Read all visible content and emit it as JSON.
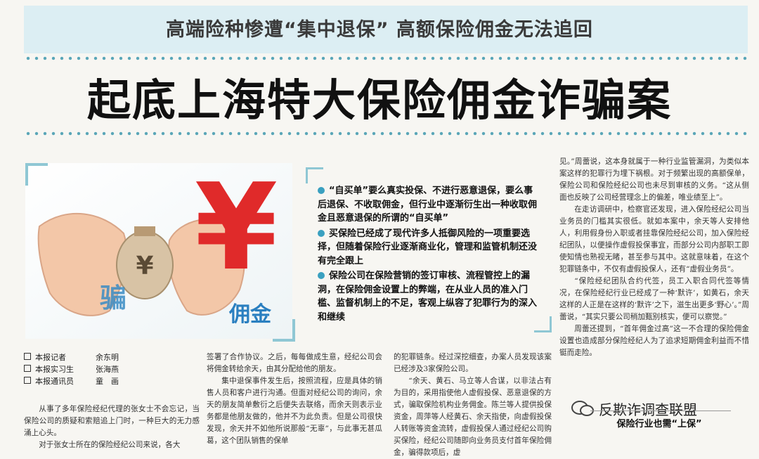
{
  "header": {
    "kicker": "高端险种惨遭“集中退保” 高额保险佣金无法追回",
    "headline": "起底上海特大保险佣金诈骗案"
  },
  "photo": {
    "yen_symbol": "¥",
    "bag_text": "¥",
    "caption_text": "佣金",
    "side_text": "骗"
  },
  "key_points": [
    "“自买单”要么真实投保、不进行恶意退保，要么事后退保、不收取佣金，但行业中逐渐衍生出一种收取佣金且恶意退保的所谓的“自买单”",
    "买保险已经成了现代许多人抵御风险的一项重要选择，但随着保险行业逐渐商业化，管理和监管机制还没有完全跟上",
    "保险公司在保险营销的签订审核、流程管控上的漏洞，在保险佣金设置上的弊端，在从业人员的准入门槛、监督机制上的不足，客观上纵容了犯罪行为的深入和继续"
  ],
  "bylines": [
    {
      "role": "本报记者",
      "name": "余东明"
    },
    {
      "role": "本报实习生",
      "name": "张海燕"
    },
    {
      "role": "本报通讯员",
      "name": "童　画"
    }
  ],
  "columns": {
    "col1": [
      "从事了多年保险经纪代理的张女士不会忘记，当保险公司的质疑和索赔追上门时，一种巨大的无力感涌上心头。",
      "对于张女士所在的保险经纪公司来说，各大"
    ],
    "col2": [
      "签署了合作协议。之后，每每做成生意，经纪公司会将佣金转给余天，由其分配给他的朋友。",
      "集中退保事件发生后，按照流程，应是具体的销售人员和客户进行沟通。但面对经纪公司的询问，余天的朋友简单敷衍之后便失去联络，而余天则表示业务都是他朋友做的，他并不为此负责。但是公司很快发现，余天并不如他所说那般“无辜”，与此事无甚瓜葛，这个团队销售的保单"
    ],
    "col3": [
      "的犯罪链条。经过深挖细查，办案人员发现该案已经涉及3家保险公司。",
      "“余天、黄石、马立等人合谋，以非法占有为目的，采用指使他人虚假投保、恶意退保的方式，骗取保险机构业务佣金。陈兰等人提供投保资金，周萍等人经黄石、余天指使，向虚假投保人转账等资金流转，虚假投保人通过经纪公司购买保险，经纪公司随即向业务员支付首年保险佣金，骗得款项后，虚"
    ],
    "col4": [
      "见。”周蕾说，这本身就属于一种行业监管漏洞，为类似本案这样的犯罪行为埋下祸根。对于频繁出现的高额保单，保险公司和保险经纪公司也未尽到审核的义务。“这从侧面也反映了公司经营理念上的偏差，唯业绩至上”。",
      "在走访调研中，检察官还发现，进入保险经纪公司当业务员的门槛其实很低。就如本案中，余天等人安排他人，利用假身份入职或者挂靠保险经纪公司，加入保险经纪团队，以便操作虚假投保事宜，而部分公司内部职工即使知情也熟视无睹，甚至参与其中。这就意味着，在这个犯罪链条中，不仅有虚假投保人，还有“虚假业务员”。",
      "“保险经纪团队合约代签，员工入职合同代签等情况，在保险经纪行业已经成了一种‘默许’，如黄石，余天这样的人正是在这样的‘默许’之下，滋生出更多‘野心’。”周蕾说，“其实只要公司稍加甄别核实，便可以察觉。”",
      "周蕾还提到，“首年佣金过高”这一不合理的保险佣金设置也造成部分保险经纪人为了追求短期佣金利益而不惜铤而走险。"
    ]
  },
  "subhead": "保险行业也需“上保”",
  "watermark": "反欺诈调查联盟",
  "colors": {
    "band": "#dceef3",
    "dots": "#5aa6b8",
    "bullet": "#3aa0c0",
    "yen_red": "#e02a2a",
    "caption_blue": "#2a7fc0"
  }
}
